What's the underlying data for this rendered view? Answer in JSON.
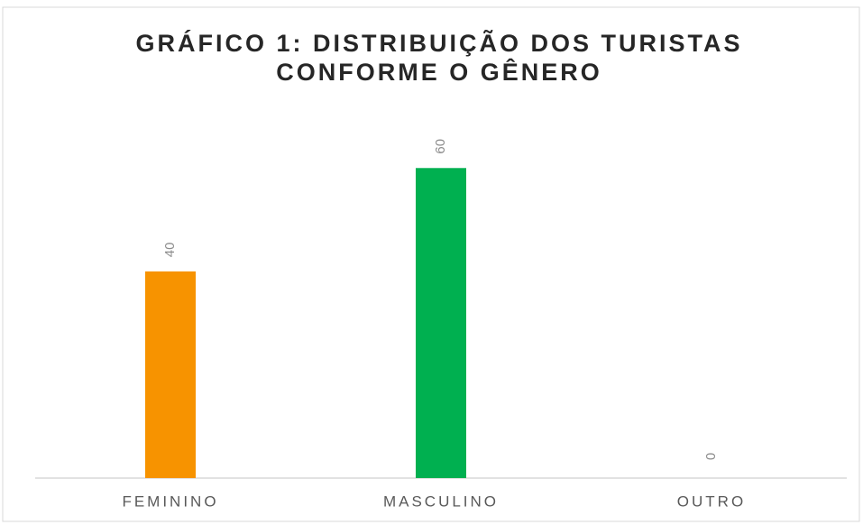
{
  "chart_data": {
    "type": "bar",
    "title": [
      "GRÁFICO 1: DISTRIBUIÇÃO DOS TURISTAS",
      "CONFORME O GÊNERO"
    ],
    "categories": [
      "FEMININO",
      "MASCULINO",
      "OUTRO"
    ],
    "values": [
      40,
      60,
      0
    ],
    "colors": [
      "#f79300",
      "#00b050",
      "#7f7f7f"
    ],
    "ylim": [
      0,
      70
    ]
  }
}
